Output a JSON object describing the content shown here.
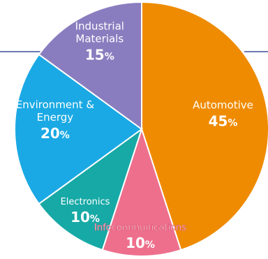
{
  "chart_data": {
    "type": "pie",
    "title": "",
    "slices": [
      {
        "label": "Automotive",
        "value": 45,
        "value_text": "45",
        "unit": "%",
        "color": "#ef8b00"
      },
      {
        "label": "Infocommunications",
        "value": 10,
        "value_text": "10",
        "unit": "%",
        "color": "#ee6f8c"
      },
      {
        "label": "Electronics",
        "value": 10,
        "value_text": "10",
        "unit": "%",
        "color": "#17a9a6"
      },
      {
        "label": "Environment &\nEnergy",
        "value": 20,
        "value_text": "20",
        "unit": "%",
        "color": "#1aa9e4"
      },
      {
        "label": "Industrial\nMaterials",
        "value": 15,
        "value_text": "15",
        "unit": "%",
        "color": "#8a7dbf"
      }
    ],
    "start_angle_deg": 0,
    "direction": "clockwise",
    "legend": "none",
    "background_line_color": "#3a4f9a"
  }
}
